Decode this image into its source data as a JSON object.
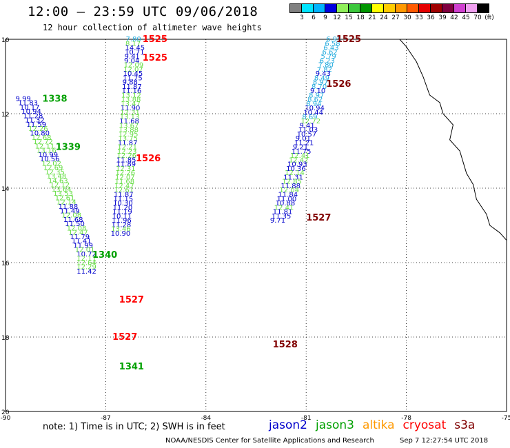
{
  "title": "12:00 – 23:59 UTC 09/06/2018",
  "subtitle": "12 hour collection of altimeter wave heights",
  "colorbar": {
    "labels": [
      "3",
      "6",
      "9",
      "12",
      "15",
      "18",
      "21",
      "24",
      "27",
      "30",
      "33",
      "36",
      "39",
      "42",
      "45",
      "70",
      "(ft)"
    ],
    "colors": [
      "#808080",
      "#00e5ff",
      "#00b4ff",
      "#0000e0",
      "#8fef5a",
      "#3cc83c",
      "#009600",
      "#ffff00",
      "#ffcc00",
      "#ff9900",
      "#ff5a00",
      "#e60000",
      "#a00000",
      "#800040",
      "#d040d0",
      "#f0a0f0",
      "#000000"
    ]
  },
  "axes": {
    "lat_labels": [
      "10",
      "12",
      "14",
      "16",
      "18",
      "20"
    ],
    "lon_labels": [
      "-90",
      "-87",
      "-84",
      "-81",
      "-78",
      "-75"
    ]
  },
  "colors": {
    "jason2": "#0000cc",
    "jason3": "#00a000",
    "altika": "#ff9900",
    "cryosat": "#ff0000",
    "s3a": "#800000",
    "swh_cyan": "#22aadd",
    "swh_green": "#66dd44",
    "swh_blue": "#0000cc"
  },
  "pass_labels": [
    {
      "text": "1525",
      "color": "cryosat",
      "lon": -85.9,
      "lat": 10.0
    },
    {
      "text": "1525",
      "color": "cryosat",
      "lon": -85.9,
      "lat": 10.5
    },
    {
      "text": "1525",
      "color": "s3a",
      "lon": -80.1,
      "lat": 10.0
    },
    {
      "text": "1526",
      "color": "s3a",
      "lon": -80.4,
      "lat": 11.2
    },
    {
      "text": "1338",
      "color": "jason3",
      "lon": -88.9,
      "lat": 11.6
    },
    {
      "text": "1339",
      "color": "jason3",
      "lon": -88.5,
      "lat": 12.9
    },
    {
      "text": "1526",
      "color": "cryosat",
      "lon": -86.1,
      "lat": 13.2
    },
    {
      "text": "1527",
      "color": "s3a",
      "lon": -81.0,
      "lat": 14.8
    },
    {
      "text": "1340",
      "color": "jason3",
      "lon": -87.4,
      "lat": 15.8
    },
    {
      "text": "1527",
      "color": "cryosat",
      "lon": -86.6,
      "lat": 17.0
    },
    {
      "text": "1527",
      "color": "cryosat",
      "lon": -86.8,
      "lat": 18.0
    },
    {
      "text": "1528",
      "color": "s3a",
      "lon": -82.0,
      "lat": 18.2
    },
    {
      "text": "1341",
      "color": "jason3",
      "lon": -86.6,
      "lat": 18.8
    }
  ],
  "tracks": [
    {
      "name": "jason3-1338",
      "lon0": -89.7,
      "lat0": 11.6,
      "dlon": 0.22,
      "dlat": 0.2,
      "values": [
        "9.99",
        "11.83",
        "10.17",
        "10.94",
        "11.28",
        "11.32",
        "11.59",
        "12.26",
        "10.80",
        "12.68",
        "12.72",
        "12.11",
        "13.16",
        "10.99",
        "10.56",
        "12.02",
        "12.69",
        "12.35",
        "13.48",
        "14.63",
        "12.12",
        "13.64",
        "13.53",
        "12.61",
        "12.14",
        "11.88",
        "11.49",
        "12.08",
        "11.68",
        "11.50",
        "12.08",
        "12.47",
        "11.79",
        "11.41",
        "11.99",
        "12.01",
        "10.72",
        "12.11",
        "12.64",
        "12.29",
        "11.42"
      ],
      "colors": [
        "b",
        "b",
        "b",
        "b",
        "b",
        "b",
        "b",
        "g",
        "b",
        "g",
        "g",
        "g",
        "g",
        "b",
        "b",
        "g",
        "g",
        "g",
        "g",
        "g",
        "g",
        "g",
        "g",
        "g",
        "g",
        "b",
        "b",
        "g",
        "b",
        "b",
        "g",
        "g",
        "b",
        "b",
        "b",
        "g",
        "b",
        "g",
        "g",
        "g",
        "b"
      ],
      "dlon_override": [
        0,
        0.08,
        0.05,
        0.05,
        0.05,
        0.05,
        0.05,
        0.05,
        0.05,
        0.05,
        0.05,
        0.05,
        0.05,
        0.05,
        0.05,
        0.05,
        0.05,
        0.05,
        0.05,
        0.05,
        0.05,
        0.05,
        0.05,
        0.05,
        0.05,
        0.05,
        0.05,
        0.05,
        0.05,
        0.05,
        0.05,
        0.05,
        0.05,
        0.05,
        0.05,
        0.05,
        0.05,
        0.0,
        0.0,
        0.0,
        0.0
      ]
    },
    {
      "name": "cryosat-1525",
      "lon0": -86.4,
      "lat0": 10.0,
      "dlon": -0.01,
      "dlat": 0.2,
      "values": [
        "7.80",
        "8.17",
        "14.45",
        "10.71",
        "9.41",
        "9.04",
        "12.09",
        "12.07",
        "10.45",
        "11.75",
        "9.88",
        "11.87",
        "11.16",
        "13.12",
        "13.88",
        "13.47",
        "11.90",
        "12.31",
        "13.13",
        "11.68",
        "13.67",
        "13.88",
        "12.95",
        "13.75",
        "11.87",
        "12.21",
        "12.23",
        "12.26",
        "11.85",
        "11.89",
        "12.31",
        "12.26",
        "12.07",
        "11.68",
        "12.47",
        "12.61",
        "11.87",
        "11.15",
        "10.30",
        "11.20",
        "11.19",
        "10.11",
        "11.96",
        "11.28",
        "13.46",
        "10.90"
      ],
      "colors": [
        "c",
        "g",
        "b",
        "b",
        "b",
        "b",
        "g",
        "g",
        "b",
        "b",
        "b",
        "b",
        "b",
        "g",
        "g",
        "g",
        "b",
        "g",
        "g",
        "b",
        "g",
        "g",
        "g",
        "g",
        "b",
        "g",
        "g",
        "g",
        "b",
        "b",
        "g",
        "g",
        "g",
        "g",
        "g",
        "g",
        "b",
        "b",
        "b",
        "b",
        "b",
        "b",
        "b",
        "b",
        "g",
        "b"
      ]
    },
    {
      "name": "s3a-1525",
      "lon0": -80.4,
      "lat0": 10.0,
      "dlon": -0.04,
      "dlat": 0.2,
      "values": [
        "6.95",
        "6.58",
        "6.43",
        "6.62",
        "5.79",
        "6.23",
        "7.80",
        "7.82",
        "9.43",
        "8.49",
        "8.97",
        "8.70",
        "9.10",
        "8.97",
        "8.62",
        "8.94",
        "10.94",
        "10.44",
        "8.69",
        "12.72",
        "9.41",
        "11.03",
        "10.57",
        "9.01",
        "11.21",
        "9.21",
        "11.75",
        "12.41",
        "12.42",
        "10.93",
        "10.36",
        "12.14",
        "11.31",
        "12.85",
        "11.88",
        "12.04",
        "11.84",
        "11.00",
        "10.88",
        "12.41",
        "11.81",
        "11.35",
        "9.71"
      ],
      "colors": [
        "c",
        "c",
        "c",
        "c",
        "c",
        "c",
        "c",
        "c",
        "b",
        "c",
        "c",
        "c",
        "b",
        "c",
        "c",
        "c",
        "b",
        "b",
        "c",
        "g",
        "b",
        "b",
        "b",
        "b",
        "b",
        "b",
        "b",
        "g",
        "g",
        "b",
        "b",
        "g",
        "b",
        "g",
        "b",
        "g",
        "b",
        "b",
        "b",
        "g",
        "b",
        "b",
        "b"
      ]
    }
  ],
  "footer_note": "note: 1) Time is in UTC; 2) SWH is in feet",
  "legend": [
    "jason2",
    "jason3",
    "altika",
    "cryosat",
    "s3a"
  ],
  "credit": "NOAA/NESDIS Center for Satellite Applications and Research",
  "credit_time": "Sep  7 12:27:54 UTC 2018"
}
